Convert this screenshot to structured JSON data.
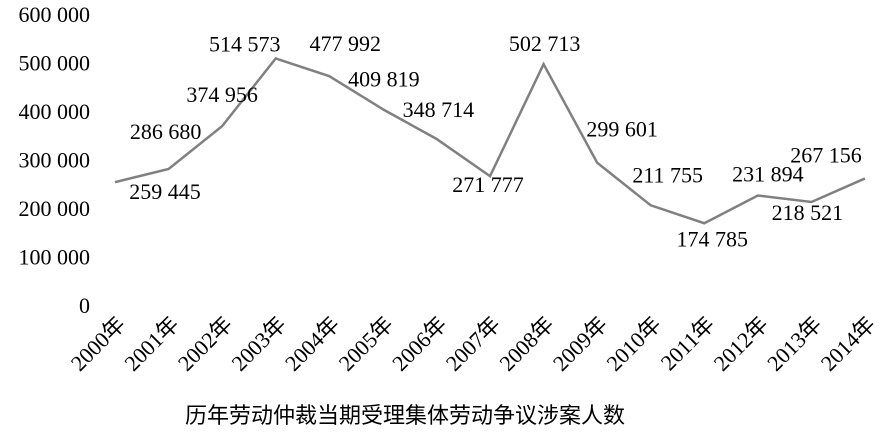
{
  "chart_data": {
    "type": "line",
    "title": "历年劳动仲裁当期受理集体劳动争议涉案人数",
    "categories": [
      "2000年",
      "2001年",
      "2002年",
      "2003年",
      "2004年",
      "2005年",
      "2006年",
      "2007年",
      "2008年",
      "2009年",
      "2010年",
      "2011年",
      "2012年",
      "2013年",
      "2014年"
    ],
    "values": [
      259445,
      286680,
      374956,
      514573,
      477992,
      409819,
      348714,
      271777,
      502713,
      299601,
      211755,
      174785,
      231894,
      218521,
      267156
    ],
    "value_labels": [
      "259 445",
      "286 680",
      "374 956",
      "514 573",
      "477 992",
      "409 819",
      "348 714",
      "271 777",
      "502 713",
      "299 601",
      "211 755",
      "174 785",
      "231 894",
      "218 521",
      "267 156"
    ],
    "color": "#808080",
    "ylim": [
      0,
      600000
    ],
    "yticks": [
      {
        "value": 0,
        "label": "0"
      },
      {
        "value": 100000,
        "label": "100 000"
      },
      {
        "value": 200000,
        "label": "200 000"
      },
      {
        "value": 300000,
        "label": "300 000"
      },
      {
        "value": 400000,
        "label": "400 000"
      },
      {
        "value": 500000,
        "label": "500 000"
      },
      {
        "value": 600000,
        "label": "600 000"
      }
    ],
    "grid": false
  }
}
